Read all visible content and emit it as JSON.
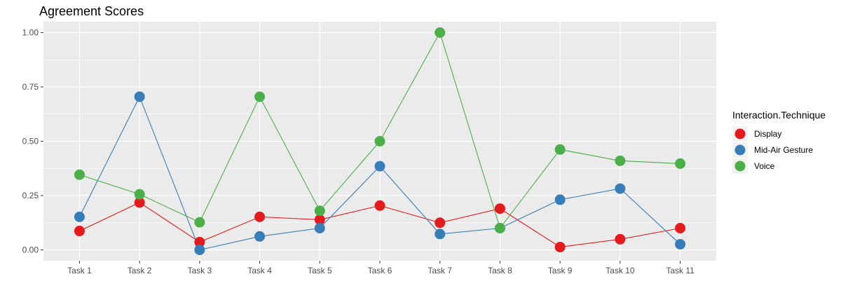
{
  "chart_data": {
    "type": "line",
    "title": "Agreement Scores",
    "xlabel": "",
    "ylabel": "",
    "categories": [
      "Task 1",
      "Task 2",
      "Task 3",
      "Task 4",
      "Task 5",
      "Task 6",
      "Task 7",
      "Task 8",
      "Task 9",
      "Task 10",
      "Task 11"
    ],
    "ylim": [
      -0.05,
      1.05
    ],
    "yticks": [
      0.0,
      0.25,
      0.5,
      0.75,
      1.0
    ],
    "ytick_labels": [
      "0.00",
      "0.25",
      "0.50",
      "0.75",
      "1.00"
    ],
    "grid": true,
    "legend": {
      "title": "Interaction.Technique",
      "position": "right"
    },
    "series": [
      {
        "name": "Display",
        "color": "#e41a1c",
        "values": [
          0.087,
          0.218,
          0.036,
          0.152,
          0.139,
          0.204,
          0.125,
          0.19,
          0.013,
          0.049,
          0.1
        ]
      },
      {
        "name": "Mid-Air Gesture",
        "color": "#377eb8",
        "values": [
          0.152,
          0.705,
          0.0,
          0.062,
          0.1,
          0.385,
          0.073,
          0.1,
          0.231,
          0.282,
          0.026
        ]
      },
      {
        "name": "Voice",
        "color": "#4daf4a",
        "values": [
          0.346,
          0.256,
          0.127,
          0.705,
          0.18,
          0.5,
          1.0,
          0.1,
          0.462,
          0.41,
          0.397
        ]
      }
    ]
  }
}
